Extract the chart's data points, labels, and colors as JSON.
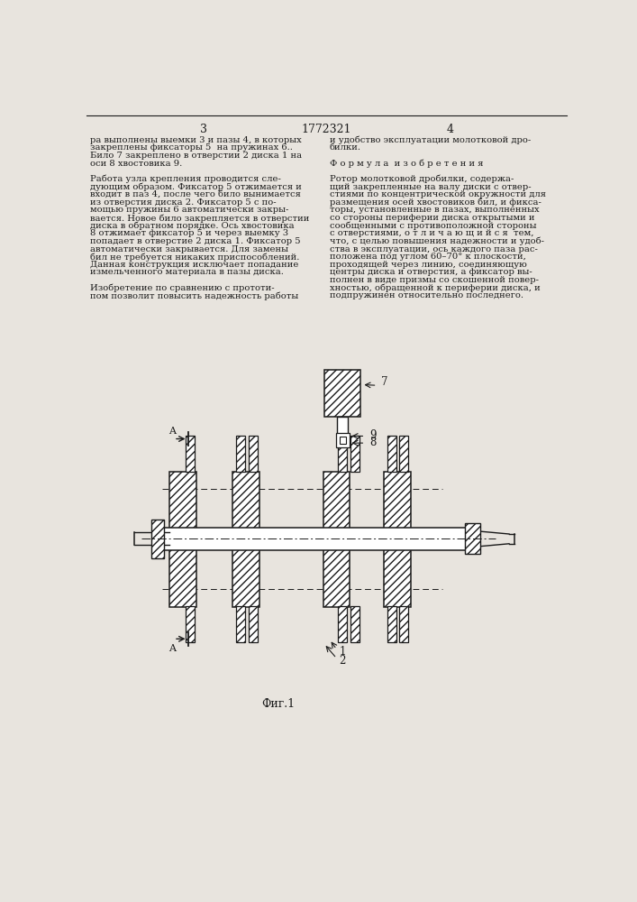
{
  "page_number_left": "3",
  "page_number_center": "1772321",
  "page_number_right": "4",
  "text_left_col": [
    "ра выполнены выемки 3 и пазы 4, в которых",
    "закреплены фиксаторы 5  на пружинах 6..",
    "Било 7 закреплено в отверстии 2 диска 1 на",
    "оси 8 хвостовика 9.",
    "",
    "Работа узла крепления проводится сле-",
    "дующим образом. Фиксатор 5 отжимается и",
    "входит в паз 4, после чего било вынимается",
    "из отверстия диска 2. Фиксатор 5 с по-",
    "мощью пружины 6 автоматически закры-",
    "вается. Новое било закрепляется в отверстии",
    "диска в обратном порядке. Ось хвостовика",
    "8 отжимает фиксатор 5 и через выемку 3",
    "попадает в отверстие 2 диска 1. Фиксатор 5",
    "автоматически закрывается. Для замены",
    "бил не требуется никаких приспособлений.",
    "Данная конструкция исключает попадание",
    "измельченного материала в пазы диска.",
    "",
    "Изобретение по сравнению с прототи-",
    "пом позволит повысить надежность работы"
  ],
  "text_right_col": [
    "и удобство эксплуатации молотковой дро-",
    "билки.",
    "",
    "Ф о р м у л а  и з о б р е т е н и я",
    "",
    "Ротор молотковой дробилки, содержа-",
    "щий закрепленные на валу диски с отвер-",
    "стиями по концентрической окружности для",
    "размещения осей хвостовиков бил, и фикса-",
    "торы, установленные в пазах, выполненных",
    "со стороны периферии диска открытыми и",
    "сообщенными с противоположной стороны",
    "с отверстиями, о т л и ч а ю щ и й с я  тем,",
    "что, с целью повышения надежности и удоб-",
    "ства в эксплуатации, ось каждого паза рас-",
    "положена под углом 60–70° к плоскости,",
    "проходящей через линию, соединяющую",
    "центры диска и отверстия, а фиксатор вы-",
    "полнен в виде призмы со скошенной повер-",
    "хностью, обращенной к периферии диска, и",
    "подпружинен относительно последнего."
  ],
  "figure_caption": "Фиг.1",
  "bg_color": "#e8e4de",
  "line_color": "#1a1a1a",
  "text_color": "#1a1a1a",
  "font_size_body": 7.2,
  "font_size_header": 9.0
}
